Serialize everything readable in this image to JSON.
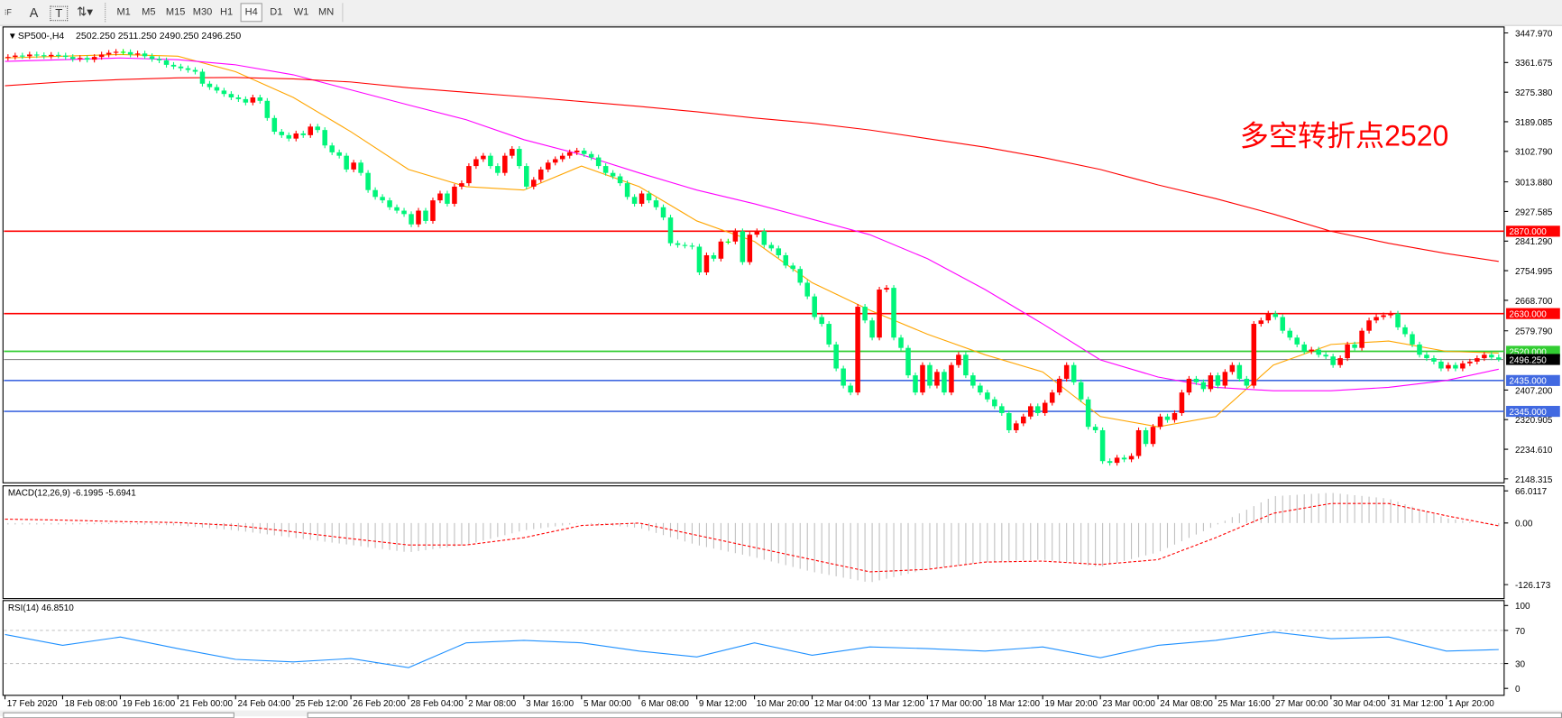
{
  "toolbar": {
    "tools": [
      {
        "name": "periodicity-grid-icon",
        "glyph": "⁝F"
      },
      {
        "name": "text-tool-icon",
        "glyph": "A"
      },
      {
        "name": "text-label-tool-icon",
        "glyph": "T"
      },
      {
        "name": "arrows-tool-icon",
        "glyph": "⇅▾"
      }
    ],
    "timeframes": [
      "M1",
      "M5",
      "M15",
      "M30",
      "H1",
      "H4",
      "D1",
      "W1",
      "MN"
    ],
    "active_timeframe": "H4"
  },
  "chart": {
    "symbol": "SP500-,H4",
    "header_ohlc": "2502.250 2511.250 2490.250 2496.250",
    "annotation": "多空转折点2520",
    "macd_label": "MACD(12,26,9) -6.1995 -5.6941",
    "rsi_label": "RSI(14) 46.8510"
  },
  "chart_data": [
    {
      "type": "candlestick",
      "title": "SP500-,H4",
      "up_color": "#ff0000",
      "down_color": "#00f57a",
      "ylim": [
        2148.315,
        3447.97
      ],
      "y_ticks": [
        "3447.970",
        "3361.675",
        "3275.380",
        "3189.085",
        "3102.790",
        "3013.880",
        "2927.585",
        "2841.290",
        "2754.995",
        "2668.700",
        "2579.790",
        "2407.200",
        "2320.905",
        "2234.610",
        "2148.315"
      ],
      "x_ticks": [
        "17 Feb 2020",
        "18 Feb 08:00",
        "19 Feb 16:00",
        "21 Feb 00:00",
        "24 Feb 04:00",
        "25 Feb 12:00",
        "26 Feb 20:00",
        "28 Feb 04:00",
        "2 Mar 08:00",
        "3 Mar 16:00",
        "5 Mar 00:00",
        "6 Mar 08:00",
        "9 Mar 12:00",
        "10 Mar 20:00",
        "12 Mar 04:00",
        "13 Mar 12:00",
        "17 Mar 00:00",
        "18 Mar 12:00",
        "19 Mar 20:00",
        "23 Mar 00:00",
        "24 Mar 08:00",
        "25 Mar 16:00",
        "27 Mar 00:00",
        "30 Mar 04:00",
        "31 Mar 12:00",
        "1 Apr 20:00"
      ],
      "close": [
        3378,
        3382,
        3380,
        3385,
        3383,
        3380,
        3384,
        3382,
        3378,
        3372,
        3375,
        3370,
        3378,
        3385,
        3390,
        3393,
        3392,
        3385,
        3388,
        3380,
        3372,
        3368,
        3355,
        3350,
        3345,
        3340,
        3335,
        3300,
        3290,
        3280,
        3270,
        3260,
        3255,
        3245,
        3260,
        3250,
        3200,
        3160,
        3150,
        3140,
        3155,
        3150,
        3175,
        3165,
        3120,
        3100,
        3090,
        3050,
        3070,
        3040,
        2990,
        2970,
        2960,
        2940,
        2930,
        2920,
        2890,
        2930,
        2900,
        2960,
        2980,
        2950,
        3000,
        3010,
        3060,
        3080,
        3090,
        3060,
        3040,
        3090,
        3110,
        3060,
        3000,
        3020,
        3050,
        3070,
        3080,
        3090,
        3100,
        3105,
        3095,
        3085,
        3060,
        3040,
        3030,
        3010,
        2970,
        2950,
        2980,
        2960,
        2940,
        2910,
        2835,
        2830,
        2828,
        2825,
        2750,
        2800,
        2790,
        2840,
        2840,
        2870,
        2780,
        2860,
        2870,
        2830,
        2820,
        2800,
        2770,
        2760,
        2720,
        2680,
        2620,
        2600,
        2540,
        2470,
        2420,
        2400,
        2650,
        2610,
        2560,
        2700,
        2705,
        2560,
        2530,
        2450,
        2400,
        2480,
        2420,
        2460,
        2400,
        2480,
        2510,
        2450,
        2420,
        2400,
        2380,
        2360,
        2340,
        2290,
        2310,
        2330,
        2360,
        2340,
        2370,
        2400,
        2440,
        2480,
        2430,
        2380,
        2300,
        2290,
        2200,
        2195,
        2210,
        2205,
        2215,
        2290,
        2250,
        2300,
        2330,
        2320,
        2340,
        2400,
        2440,
        2430,
        2410,
        2450,
        2420,
        2460,
        2480,
        2440,
        2420,
        2600,
        2610,
        2630,
        2620,
        2580,
        2560,
        2540,
        2520,
        2525,
        2510,
        2505,
        2480,
        2500,
        2540,
        2530,
        2580,
        2610,
        2620,
        2625,
        2630,
        2590,
        2570,
        2540,
        2510,
        2500,
        2490,
        2470,
        2480,
        2470,
        2485,
        2490,
        2500,
        2510,
        2502.25,
        2496.25
      ],
      "last_bar": {
        "open": 2502.25,
        "high": 2511.25,
        "low": 2490.25,
        "close": 2496.25
      },
      "current_price": {
        "value": 2496.25,
        "label": "2496.250"
      },
      "levels": [
        {
          "value": 2870,
          "label": "2870.000",
          "color": "#ff0000"
        },
        {
          "value": 2630,
          "label": "2630.000",
          "color": "#ff0000"
        },
        {
          "value": 2520,
          "label": "2520.000",
          "color": "#32cd32"
        },
        {
          "value": 2435,
          "label": "2435.000",
          "color": "#4169e1"
        },
        {
          "value": 2345,
          "label": "2345.000",
          "color": "#4169e1"
        }
      ],
      "moving_averages": [
        {
          "color": "#ffa500",
          "values_at_x_ticks_and_last_bar": [
            3375,
            3380,
            3385,
            3380,
            3335,
            3260,
            3160,
            3050,
            3000,
            2990,
            3060,
            3000,
            2900,
            2840,
            2720,
            2640,
            2570,
            2510,
            2460,
            2330,
            2300,
            2330,
            2480,
            2540,
            2550,
            2520,
            2515
          ]
        },
        {
          "color": "#ff00ff",
          "values_at_x_ticks_and_last_bar": [
            3365,
            3370,
            3375,
            3370,
            3355,
            3326,
            3282,
            3238,
            3195,
            3137,
            3093,
            3040,
            2990,
            2950,
            2905,
            2860,
            2790,
            2700,
            2600,
            2495,
            2445,
            2415,
            2405,
            2405,
            2415,
            2435,
            2468
          ]
        },
        {
          "color": "#ff0000",
          "values_at_x_ticks_and_last_bar": [
            3294,
            3305,
            3312,
            3317,
            3318,
            3314,
            3305,
            3288,
            3275,
            3262,
            3248,
            3234,
            3218,
            3200,
            3185,
            3165,
            3140,
            3115,
            3085,
            3050,
            3005,
            2965,
            2920,
            2870,
            2835,
            2805,
            2782
          ]
        }
      ]
    },
    {
      "type": "bar",
      "title": "MACD(12,26,9)",
      "ylim": [
        -126.173,
        66.0117
      ],
      "y_ticks": [
        "66.0117",
        "0.00",
        "-126.173"
      ],
      "histogram_color": "#c0c0c0",
      "signal_color": "#ff0000",
      "macd_at_x_ticks_and_last_bar": [
        -3,
        -3,
        -2,
        -5,
        -15,
        -30,
        -45,
        -60,
        -45,
        -15,
        0,
        -10,
        -45,
        -70,
        -100,
        -122,
        -95,
        -80,
        -75,
        -90,
        -60,
        -5,
        55,
        62,
        50,
        10,
        -6.1995
      ],
      "signal_at_x_ticks_and_last_bar": [
        8,
        6,
        3,
        1,
        -5,
        -18,
        -32,
        -45,
        -45,
        -30,
        -5,
        0,
        -25,
        -50,
        -75,
        -100,
        -95,
        -80,
        -78,
        -85,
        -75,
        -30,
        20,
        40,
        40,
        15,
        -5.6941
      ]
    },
    {
      "type": "line",
      "title": "RSI(14)",
      "ylim": [
        0,
        100
      ],
      "y_ticks": [
        "100",
        "70",
        "30",
        "0"
      ],
      "levels": [
        70,
        30
      ],
      "color": "#1e90ff",
      "values_at_x_ticks_and_last_bar": [
        65,
        52,
        62,
        48,
        35,
        32,
        36,
        25,
        55,
        58,
        55,
        45,
        38,
        55,
        40,
        50,
        48,
        45,
        50,
        37,
        52,
        58,
        68,
        60,
        62,
        45,
        46.851
      ]
    }
  ]
}
